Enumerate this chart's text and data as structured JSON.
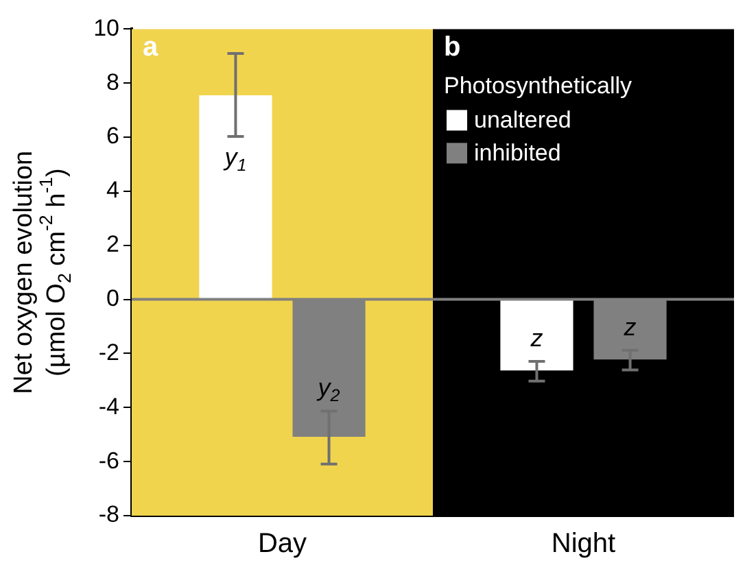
{
  "chart_data": {
    "type": "bar",
    "ylabel": "Net oxygen evolution\n(µmol O$_{2}$ cm$^{-2}$ h$^{-1}$)",
    "legend_title": "Photosynthetically",
    "categories": [
      "Day",
      "Night"
    ],
    "series": [
      {
        "name": "unaltered",
        "color": "#ffffff",
        "values": [
          7.55,
          -2.63
        ],
        "errors": [
          [
            6.03,
            9.1
          ],
          [
            -3.02,
            -2.29
          ]
        ]
      },
      {
        "name": "inhibited",
        "color": "#808080",
        "values": [
          -5.08,
          -2.22
        ],
        "errors": [
          [
            -6.09,
            -4.13
          ],
          [
            -2.61,
            -1.88
          ]
        ]
      }
    ],
    "annotations": [
      "y$_{1}$",
      "y$_{2}$",
      "z",
      "z"
    ],
    "ylim": [
      -8,
      10
    ],
    "yticks": [
      -8,
      -6,
      -4,
      -2,
      0,
      2,
      4,
      6,
      8,
      10
    ],
    "bands": [
      {
        "axis": "x",
        "from": "Day",
        "to": "Day",
        "label": "a",
        "color": "#f0d44e"
      },
      {
        "axis": "x",
        "from": "Night",
        "to": "Night",
        "label": "b",
        "color": "#000000"
      }
    ],
    "ref_lines": [
      {
        "axis": "y",
        "value": 0,
        "color": "#808080"
      }
    ],
    "legend": "top right",
    "grid": false
  }
}
